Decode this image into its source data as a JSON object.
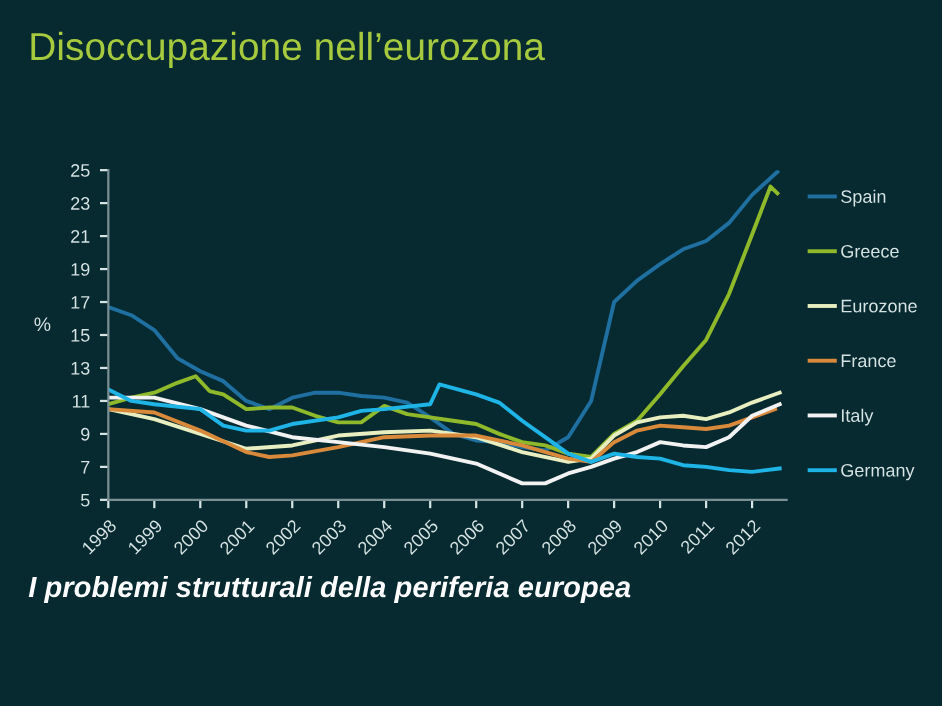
{
  "chart_data": {
    "type": "line",
    "title": "Disoccupazione nell’eurozona",
    "ylabel": "%",
    "annotations": [
      "I problemi strutturali della periferia europea"
    ],
    "xlim": [
      1998,
      2012.75
    ],
    "ylim": [
      5,
      25
    ],
    "xticks": [
      1998,
      1999,
      2000,
      2001,
      2002,
      2003,
      2004,
      2005,
      2006,
      2007,
      2008,
      2009,
      2010,
      2011,
      2012
    ],
    "yticks": [
      5,
      7,
      9,
      11,
      13,
      15,
      17,
      19,
      21,
      23,
      25
    ],
    "grid": false,
    "legend": "right",
    "marker": "none",
    "line_style": "solid",
    "series": [
      {
        "name": "Spain",
        "color": "#1f6fa0",
        "x": [
          1998,
          1998.5,
          1999,
          1999.5,
          2000,
          2000.5,
          2001,
          2001.5,
          2002,
          2002.5,
          2003,
          2003.5,
          2004,
          2004.5,
          2005,
          2005.5,
          2006,
          2006.5,
          2007,
          2007.5,
          2008,
          2008.5,
          2009,
          2009.5,
          2010,
          2010.5,
          2011,
          2011.5,
          2012,
          2012.55
        ],
        "values": [
          16.7,
          16.2,
          15.3,
          13.6,
          12.8,
          12.2,
          11.0,
          10.5,
          11.2,
          11.5,
          11.5,
          11.3,
          11.2,
          10.9,
          10.0,
          9.0,
          8.6,
          8.5,
          8.2,
          8.0,
          8.8,
          11.0,
          17.0,
          18.3,
          19.3,
          20.2,
          20.7,
          21.8,
          23.5,
          24.9
        ]
      },
      {
        "name": "Greece",
        "color": "#8fb92a",
        "x": [
          1998,
          1998.5,
          1999,
          1999.5,
          1999.9,
          2000.2,
          2000.5,
          2001,
          2001.5,
          2002,
          2002.5,
          2003,
          2003.5,
          2004,
          2004.5,
          2005,
          2005.5,
          2006,
          2006.5,
          2007,
          2007.5,
          2008,
          2008.5,
          2009,
          2009.5,
          2010,
          2010.5,
          2011,
          2011.5,
          2012,
          2012.4,
          2012.55
        ],
        "values": [
          10.8,
          11.2,
          11.5,
          12.1,
          12.5,
          11.6,
          11.4,
          10.5,
          10.6,
          10.6,
          10.1,
          9.7,
          9.7,
          10.7,
          10.2,
          10.0,
          9.8,
          9.6,
          9.0,
          8.5,
          8.3,
          7.8,
          7.6,
          9.0,
          9.8,
          11.4,
          13.1,
          14.7,
          17.5,
          21.1,
          24.0,
          23.6
        ]
      },
      {
        "name": "Eurozone",
        "color": "#e8eec0",
        "x": [
          1998,
          1999,
          2000,
          2001,
          2002,
          2003,
          2004,
          2005,
          2006,
          2007,
          2008,
          2008.5,
          2009,
          2009.5,
          2010,
          2010.5,
          2011,
          2011.5,
          2012,
          2012.6
        ],
        "values": [
          10.5,
          9.9,
          9.0,
          8.1,
          8.3,
          8.9,
          9.1,
          9.2,
          8.8,
          7.9,
          7.3,
          7.5,
          8.9,
          9.7,
          10.0,
          10.1,
          9.9,
          10.3,
          10.9,
          11.5
        ]
      },
      {
        "name": "France",
        "color": "#d9893a",
        "x": [
          1998,
          1999,
          2000,
          2001,
          2001.5,
          2002,
          2003,
          2004,
          2005,
          2006,
          2007,
          2008,
          2008.5,
          2009,
          2009.5,
          2010,
          2010.5,
          2011,
          2011.5,
          2012,
          2012.5
        ],
        "values": [
          10.5,
          10.3,
          9.2,
          7.9,
          7.6,
          7.7,
          8.2,
          8.8,
          8.9,
          8.9,
          8.3,
          7.5,
          7.3,
          8.5,
          9.2,
          9.5,
          9.4,
          9.3,
          9.5,
          10.0,
          10.5
        ]
      },
      {
        "name": "Italy",
        "color": "#f2f2f2",
        "x": [
          1998,
          1999,
          2000,
          2001,
          2002,
          2003,
          2004,
          2005,
          2006,
          2007,
          2007.5,
          2008,
          2008.5,
          2009,
          2009.5,
          2010,
          2010.5,
          2011,
          2011.5,
          2012,
          2012.6
        ],
        "values": [
          11.2,
          11.2,
          10.5,
          9.5,
          8.8,
          8.5,
          8.2,
          7.8,
          7.2,
          6.0,
          6.0,
          6.6,
          7.0,
          7.5,
          7.9,
          8.5,
          8.3,
          8.2,
          8.8,
          10.1,
          10.8
        ]
      },
      {
        "name": "Germany",
        "color": "#1eb4e6",
        "x": [
          1998,
          1998.5,
          1999,
          2000,
          2000.5,
          2001,
          2001.5,
          2002,
          2003,
          2003.5,
          2004,
          2005,
          2005.2,
          2006,
          2006.5,
          2007,
          2007.5,
          2008,
          2008.5,
          2009,
          2009.5,
          2010,
          2010.5,
          2011,
          2011.5,
          2012,
          2012.6
        ],
        "values": [
          11.7,
          11.0,
          10.8,
          10.5,
          9.5,
          9.2,
          9.2,
          9.6,
          10.0,
          10.4,
          10.5,
          10.8,
          12.0,
          11.4,
          10.9,
          9.8,
          8.8,
          7.8,
          7.3,
          7.8,
          7.6,
          7.5,
          7.1,
          7.0,
          6.8,
          6.7,
          6.9
        ]
      }
    ]
  }
}
